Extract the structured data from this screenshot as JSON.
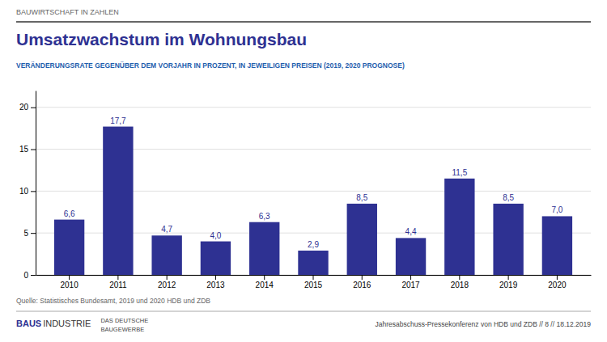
{
  "chart_data": {
    "type": "bar",
    "title": "Umsatzwachstum im Wohnungsbau",
    "subtitle": "VERÄNDERUNGSRATE GEGENÜBER DEM VORJAHR IN PROZENT, IN JEWEILIGEN PREISEN (2019, 2020 PROGNOSE)",
    "annotations": [
      "BAUWIRTSCHAFT IN ZAHLEN",
      "Quelle: Statistisches Bundesamt, 2019 und 2020 HDB und ZDB",
      "BAUS",
      "INDUSTRIE",
      "DAS DEUTSCHE",
      "BAUGEWERBE",
      "Jahresabschuss-Pressekonferenz von HDB und ZDB  //  8  // 18.12.2019"
    ],
    "categories": [
      "2010",
      "2011",
      "2012",
      "2013",
      "2014",
      "2015",
      "2016",
      "2017",
      "2018",
      "2019",
      "2020"
    ],
    "values": [
      6.6,
      17.7,
      4.7,
      4.0,
      6.3,
      2.9,
      8.5,
      4.4,
      11.5,
      8.5,
      7.0
    ],
    "value_labels": [
      "6,6",
      "17,7",
      "4,7",
      "4,0",
      "6,3",
      "2,9",
      "8,5",
      "4,4",
      "11,5",
      "8,5",
      "7,0"
    ],
    "data_labels": true,
    "color": "#2E3192",
    "ylim": [
      0,
      22
    ],
    "yticks": [
      0,
      5,
      10,
      15,
      20
    ],
    "grid": true
  }
}
